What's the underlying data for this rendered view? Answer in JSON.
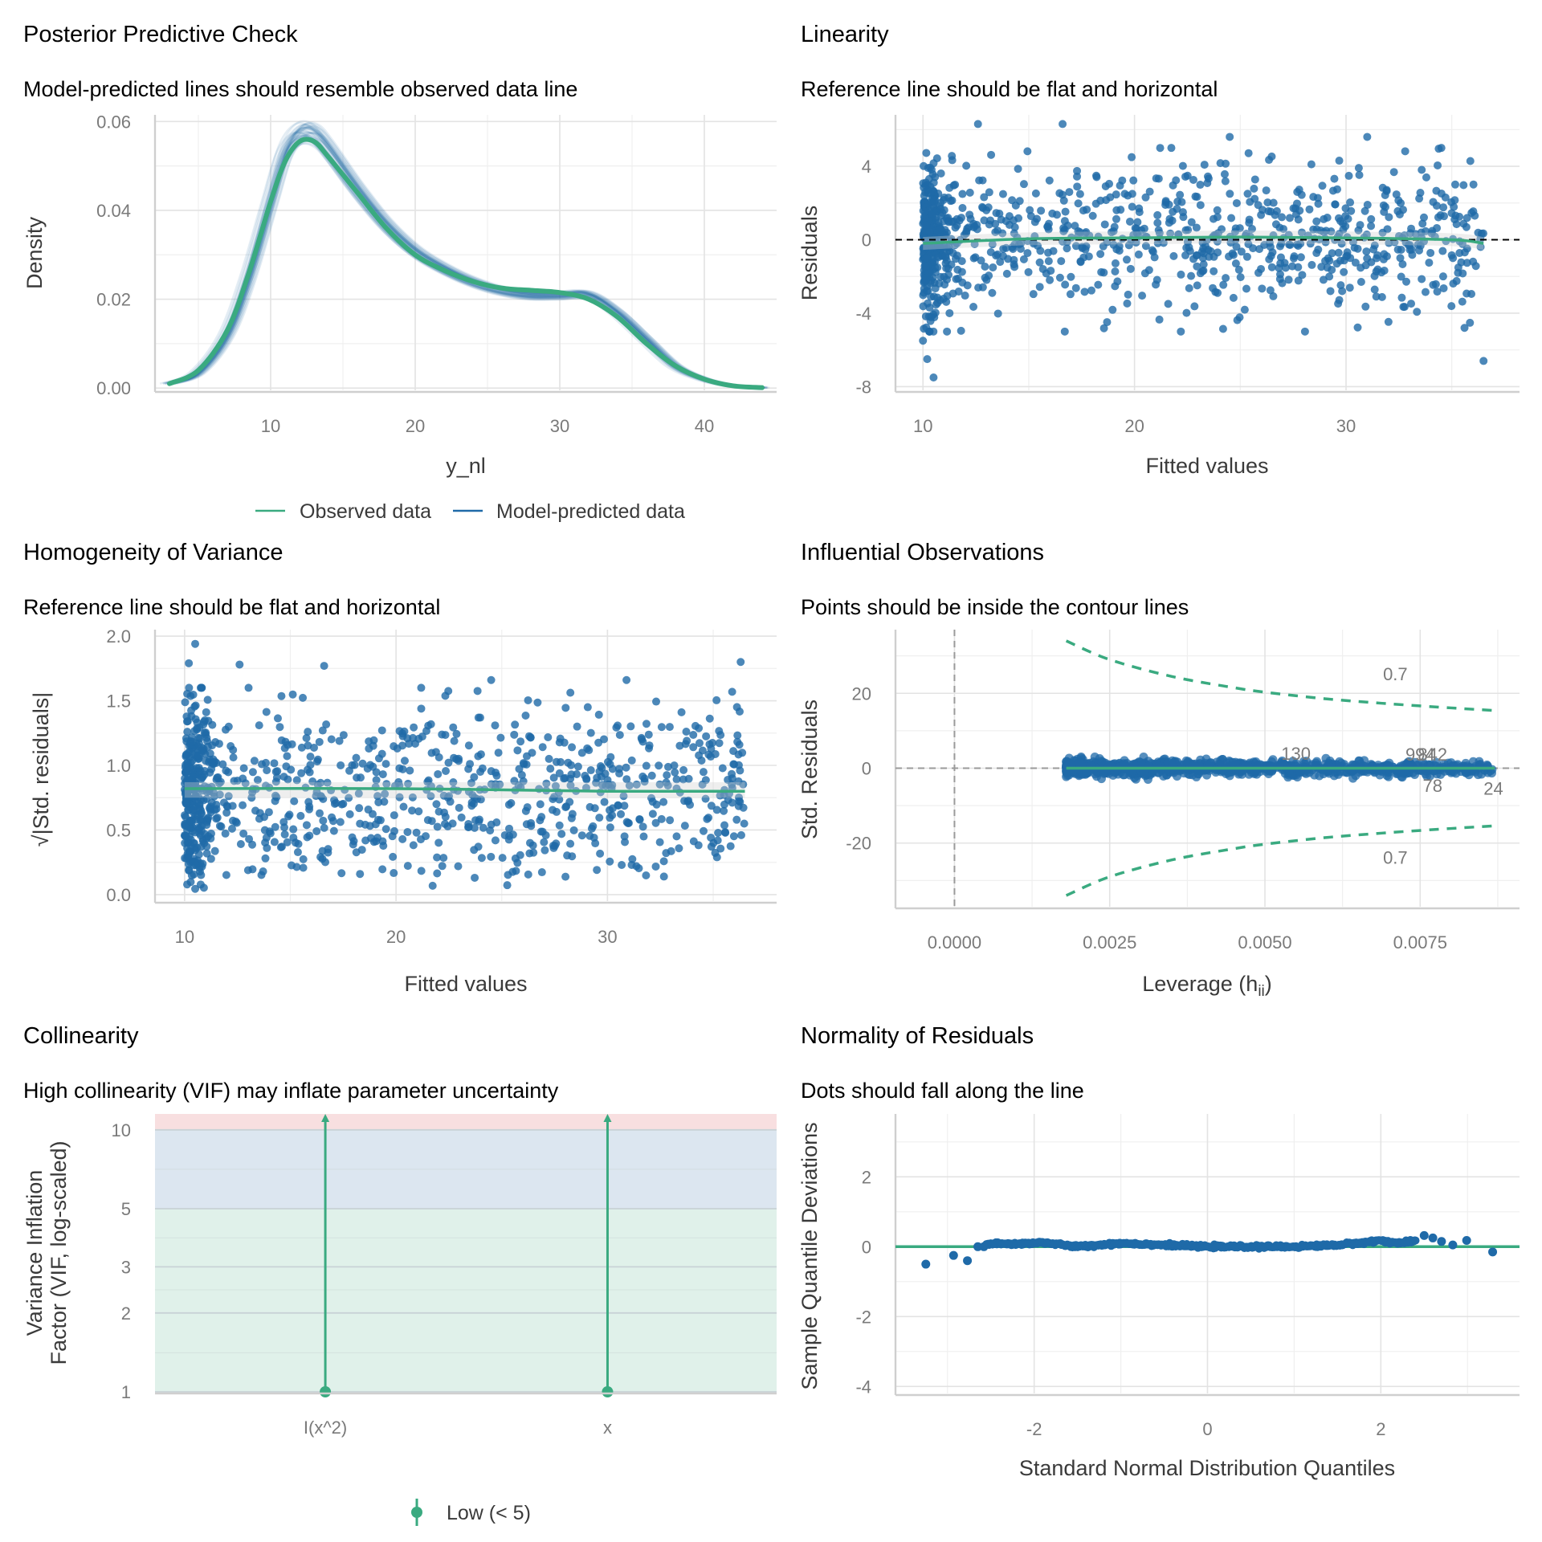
{
  "colors": {
    "observed": "#3aaa80",
    "predicted": "#1f6aa8",
    "points": "#1f6aa8",
    "reference_line": "#3aaa80",
    "vif_low": "#e0f1ea",
    "vif_moderate": "#dce6f0",
    "vif_high": "#f8dfe0"
  },
  "chart_data": [
    {
      "id": "ppc",
      "type": "line",
      "title": "Posterior Predictive Check",
      "subtitle": "Model-predicted lines should resemble observed data line",
      "xlabel": "y_nl",
      "ylabel": "Density",
      "xlim": [
        2,
        45
      ],
      "ylim": [
        -0.0005,
        0.0615
      ],
      "xticks": [
        10,
        20,
        30,
        40
      ],
      "xtick_labels": [
        "10",
        "20",
        "30",
        "40"
      ],
      "yticks": [
        0,
        0.02,
        0.04,
        0.06
      ],
      "ytick_labels": [
        "0.00",
        "0.02",
        "0.04",
        "0.06"
      ],
      "grid": true,
      "legend_position": "bottom",
      "legend": [
        "Observed data",
        "Model-predicted data"
      ],
      "series": [
        {
          "name": "Observed data",
          "x": [
            3,
            5,
            7,
            8.5,
            10,
            11,
            12,
            13,
            14,
            16,
            18,
            20,
            22,
            24,
            26,
            28,
            30,
            32,
            34,
            36,
            38,
            40,
            42,
            44
          ],
          "y": [
            0.001,
            0.004,
            0.013,
            0.026,
            0.042,
            0.051,
            0.0555,
            0.0555,
            0.052,
            0.044,
            0.036,
            0.03,
            0.0265,
            0.024,
            0.0225,
            0.022,
            0.0215,
            0.02,
            0.016,
            0.01,
            0.005,
            0.002,
            0.0005,
            0.0001
          ]
        },
        {
          "name": "Model-predicted data",
          "x": [
            3,
            5,
            7,
            8.5,
            10,
            11,
            12,
            13,
            14,
            16,
            18,
            20,
            22,
            24,
            26,
            28,
            30,
            32,
            34,
            36,
            38,
            40,
            42,
            44
          ],
          "y": [
            0.001,
            0.0035,
            0.012,
            0.025,
            0.042,
            0.053,
            0.0575,
            0.0575,
            0.054,
            0.045,
            0.037,
            0.031,
            0.027,
            0.024,
            0.022,
            0.021,
            0.021,
            0.021,
            0.017,
            0.011,
            0.005,
            0.002,
            0.0005,
            0.0001
          ]
        }
      ]
    },
    {
      "id": "linearity",
      "type": "scatter",
      "title": "Linearity",
      "subtitle": "Reference line should be flat and horizontal",
      "xlabel": "Fitted values",
      "ylabel": "Residuals",
      "xlim": [
        8.7,
        38.2
      ],
      "ylim": [
        -8.2,
        6.8
      ],
      "xticks": [
        10,
        20,
        30
      ],
      "xtick_labels": [
        "10",
        "20",
        "30"
      ],
      "yticks": [
        -8,
        -4,
        0,
        4
      ],
      "ytick_labels": [
        "-8",
        "-4",
        "0",
        "4"
      ],
      "grid": true,
      "reference_line": {
        "y": 0,
        "style": "dashed"
      },
      "smooth_line": {
        "x": [
          10,
          15,
          20,
          25,
          30,
          35,
          36.5
        ],
        "y": [
          -0.2,
          0.05,
          0.1,
          0.15,
          0.1,
          0.0,
          -0.2
        ]
      },
      "outliers": [
        {
          "x": 10,
          "y": -5.5
        },
        {
          "x": 10.2,
          "y": -6.5
        },
        {
          "x": 10.5,
          "y": -7.5
        },
        {
          "x": 36.5,
          "y": -6.6
        },
        {
          "x": 35.6,
          "y": -4.8
        },
        {
          "x": 12.6,
          "y": 6.3
        },
        {
          "x": 16.6,
          "y": 6.3
        },
        {
          "x": 24.5,
          "y": 5.6
        },
        {
          "x": 31,
          "y": 5.6
        }
      ],
      "n_points": 1000
    },
    {
      "id": "homogeneity",
      "type": "scatter",
      "title": "Homogeneity of Variance",
      "subtitle": "Reference line should be flat and horizontal",
      "xlabel": "Fitted values",
      "ylabel": "√|Std. residuals|",
      "xlim": [
        8.6,
        38.0
      ],
      "ylim": [
        -0.05,
        2.05
      ],
      "xticks": [
        10,
        20,
        30
      ],
      "xtick_labels": [
        "10",
        "20",
        "30"
      ],
      "yticks": [
        0,
        0.5,
        1.0,
        1.5,
        2.0
      ],
      "ytick_labels": [
        "0.0",
        "0.5",
        "1.0",
        "1.5",
        "2.0"
      ],
      "grid": true,
      "smooth_line": {
        "x": [
          10,
          20,
          30,
          36.5
        ],
        "y": [
          0.82,
          0.82,
          0.8,
          0.8
        ]
      },
      "outliers": [
        {
          "x": 10.5,
          "y": 1.94
        },
        {
          "x": 10.2,
          "y": 1.79
        },
        {
          "x": 16.6,
          "y": 1.77
        },
        {
          "x": 12.6,
          "y": 1.78
        },
        {
          "x": 36.3,
          "y": 1.8
        },
        {
          "x": 30.9,
          "y": 1.66
        },
        {
          "x": 24.5,
          "y": 1.66
        }
      ],
      "n_points": 1000
    },
    {
      "id": "influential",
      "type": "scatter",
      "title": "Influential Observations",
      "subtitle": "Points should be inside the contour lines",
      "xlabel": "Leverage (h",
      "xlabel_sub": "ii",
      "xlabel_end": ")",
      "ylabel": "Std. Residuals",
      "xlim": [
        -0.00095,
        0.0091
      ],
      "ylim": [
        -37,
        37
      ],
      "xticks": [
        0,
        0.0025,
        0.005,
        0.0075
      ],
      "xtick_labels": [
        "0.0000",
        "0.0025",
        "0.0050",
        "0.0075"
      ],
      "yticks": [
        -20,
        0,
        20
      ],
      "ytick_labels": [
        "-20",
        "0",
        "20"
      ],
      "grid": true,
      "contour_level": "0.7",
      "contour_upper": {
        "x": [
          0.0018,
          0.0025,
          0.0035,
          0.0045,
          0.005,
          0.006,
          0.007,
          0.008,
          0.0087
        ],
        "y": [
          34,
          29,
          24.5,
          21.5,
          20.3,
          18.5,
          17.2,
          16.1,
          15.4
        ]
      },
      "contour_lower": {
        "x": [
          0.0018,
          0.0025,
          0.0035,
          0.0045,
          0.005,
          0.006,
          0.007,
          0.008,
          0.0087
        ],
        "y": [
          -34,
          -29,
          -24.5,
          -21.5,
          -20.3,
          -18.5,
          -17.2,
          -16.1,
          -15.4
        ]
      },
      "labeled_points": [
        {
          "label": "130",
          "x": 0.0055,
          "y": 2.3
        },
        {
          "label": "994",
          "x": 0.0075,
          "y": 2.0
        },
        {
          "label": "842",
          "x": 0.0077,
          "y": 2.0
        },
        {
          "label": "78",
          "x": 0.0077,
          "y": -2.5
        },
        {
          "label": "24",
          "x": 0.00868,
          "y": -3.2
        }
      ],
      "leverage_range": [
        0.0018,
        0.0087
      ],
      "n_points": 1000
    },
    {
      "id": "collinearity",
      "type": "bar",
      "title": "Collinearity",
      "subtitle": "High collinearity (VIF) may inflate parameter uncertainty",
      "xlabel": "",
      "ylabel_line1": "Variance Inflation",
      "ylabel_line2": "Factor (VIF, log-scaled)",
      "categories": [
        "I(x^2)",
        "x"
      ],
      "values": [
        1,
        1
      ],
      "ci_upper": "Inf",
      "ylim_log": [
        1,
        11.5
      ],
      "yticks": [
        1,
        2,
        3,
        5,
        10
      ],
      "ytick_labels": [
        "1",
        "2",
        "3",
        "5",
        "10"
      ],
      "bands": [
        {
          "name": "low",
          "from": 1,
          "to": 5
        },
        {
          "name": "moderate",
          "from": 5,
          "to": 10
        },
        {
          "name": "high",
          "from": 10,
          "to": 11.5
        }
      ],
      "legend_position": "bottom",
      "legend": [
        "Low (< 5)"
      ]
    },
    {
      "id": "normality",
      "type": "scatter",
      "title": "Normality of Residuals",
      "subtitle": "Dots should fall along the line",
      "xlabel": "Standard Normal Distribution Quantiles",
      "ylabel": "Sample Quantile Deviations",
      "xlim": [
        -3.6,
        3.6
      ],
      "ylim": [
        -4.2,
        3.8
      ],
      "xticks": [
        -2,
        0,
        2
      ],
      "xtick_labels": [
        "-2",
        "0",
        "2"
      ],
      "yticks": [
        -4,
        -2,
        0,
        2
      ],
      "ytick_labels": [
        "-4",
        "-2",
        "0",
        "2"
      ],
      "grid": true,
      "reference_line": {
        "y": 0
      },
      "tail_points": [
        {
          "x": -3.25,
          "y": -0.5
        },
        {
          "x": -2.93,
          "y": -0.25
        },
        {
          "x": -2.77,
          "y": -0.4
        },
        {
          "x": -2.65,
          "y": 0.0
        },
        {
          "x": -2.58,
          "y": 0.0
        },
        {
          "x": 2.5,
          "y": 0.32
        },
        {
          "x": 2.6,
          "y": 0.25
        },
        {
          "x": 2.7,
          "y": 0.15
        },
        {
          "x": 2.83,
          "y": 0.05
        },
        {
          "x": 2.99,
          "y": 0.18
        },
        {
          "x": 3.29,
          "y": -0.15
        }
      ],
      "body_curve": {
        "x": [
          -2.55,
          -2.2,
          -1.9,
          -1.5,
          -1.0,
          -0.5,
          0,
          0.5,
          1.0,
          1.5,
          1.8,
          2.0,
          2.2,
          2.4
        ],
        "y": [
          0.08,
          0.08,
          0.12,
          0.0,
          0.1,
          0.05,
          0.0,
          0.0,
          0.0,
          0.05,
          0.12,
          0.18,
          0.1,
          0.15
        ]
      }
    }
  ]
}
